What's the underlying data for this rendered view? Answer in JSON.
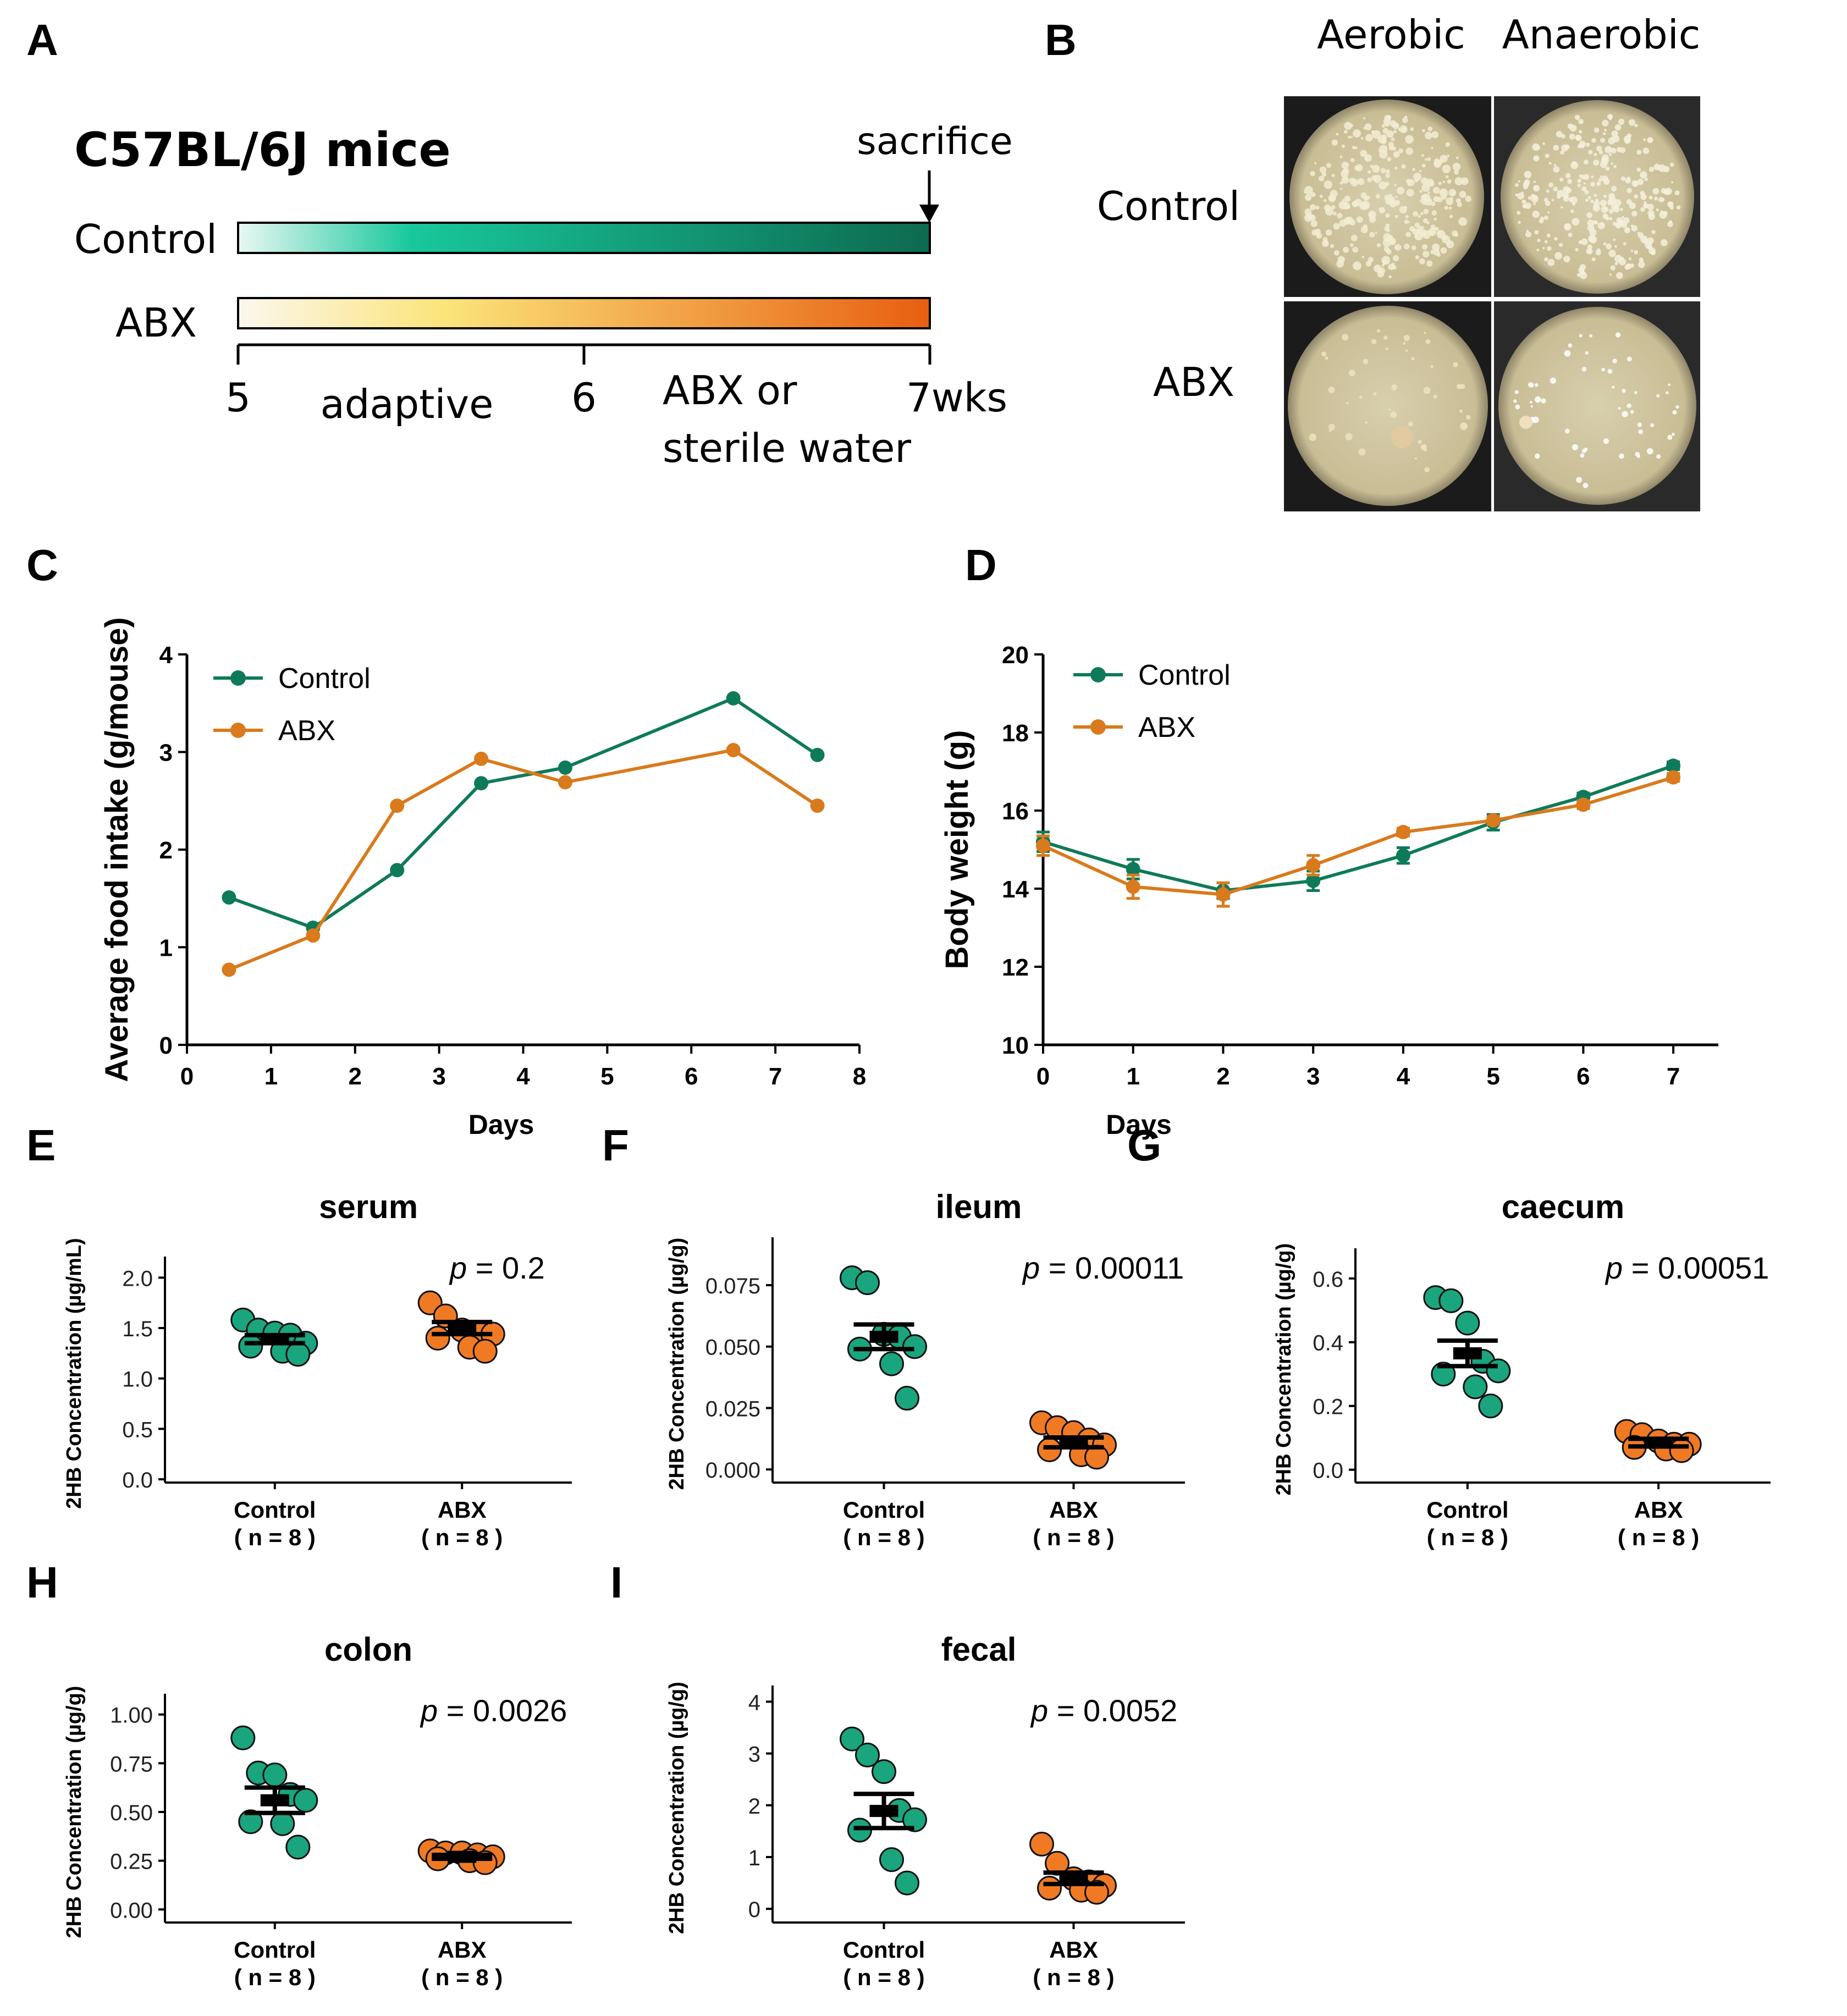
{
  "colors": {
    "control": "#0f7a5a",
    "abx": "#d97a1c",
    "control_dot": "#1aa57e",
    "abx_dot": "#f07a24",
    "control_bar_start": "#e9f8f3",
    "control_bar_mid": "#18c89c",
    "control_bar_end": "#0d6a4f",
    "abx_bar_start": "#fbf7ee",
    "abx_bar_mid": "#fbe47a",
    "abx_bar_end": "#e85e10"
  },
  "panel_labels": [
    "A",
    "B",
    "C",
    "D",
    "E",
    "F",
    "G",
    "H",
    "I"
  ],
  "panel_a": {
    "title": "C57BL/6J mice",
    "control_label": "Control",
    "abx_label": "ABX",
    "sacrifice_label": "sacrifice",
    "ticks": [
      "5",
      "6",
      "7wks"
    ],
    "phase1_label": "adaptive",
    "phase2_label_line1": "ABX or",
    "phase2_label_line2": "sterile water"
  },
  "panel_b": {
    "col_labels": [
      "Aerobic",
      "Anaerobic"
    ],
    "row_labels": [
      "Control",
      "ABX"
    ],
    "plates": [
      {
        "group": "Control",
        "condition": "Aerobic",
        "colony_density": "high"
      },
      {
        "group": "Control",
        "condition": "Anaerobic",
        "colony_density": "high"
      },
      {
        "group": "ABX",
        "condition": "Aerobic",
        "colony_density": "low"
      },
      {
        "group": "ABX",
        "condition": "Anaerobic",
        "colony_density": "low"
      }
    ]
  },
  "chart_data": [
    {
      "panel": "C",
      "type": "line",
      "xlabel": "Days",
      "ylabel": "Average food intake (g/mouse)",
      "xlim": [
        0,
        8
      ],
      "ylim": [
        0,
        4
      ],
      "xticks": [
        "0",
        "1",
        "2",
        "3",
        "4",
        "5",
        "6",
        "7",
        "8"
      ],
      "yticks": [
        "0",
        "1",
        "2",
        "3",
        "4"
      ],
      "legend": [
        "Control",
        "ABX"
      ],
      "series": [
        {
          "name": "Control",
          "x": [
            0.5,
            1.5,
            2.5,
            3.5,
            4.5,
            6.5,
            7.5
          ],
          "y": [
            1.51,
            1.2,
            1.79,
            2.68,
            2.84,
            3.55,
            2.97
          ]
        },
        {
          "name": "ABX",
          "x": [
            0.5,
            1.5,
            2.5,
            3.5,
            4.5,
            6.5,
            7.5
          ],
          "y": [
            0.77,
            1.12,
            2.45,
            2.93,
            2.69,
            3.02,
            2.45
          ]
        }
      ]
    },
    {
      "panel": "D",
      "type": "line",
      "xlabel": "Days",
      "ylabel": "Body weight (g)",
      "xlim": [
        0,
        7.5
      ],
      "ylim": [
        10,
        20
      ],
      "xticks": [
        "0",
        "1",
        "2",
        "3",
        "4",
        "5",
        "6",
        "7"
      ],
      "yticks": [
        "10",
        "12",
        "14",
        "16",
        "18",
        "20"
      ],
      "legend": [
        "Control",
        "ABX"
      ],
      "series": [
        {
          "name": "Control",
          "x": [
            0,
            1,
            2,
            3,
            4,
            5,
            6,
            7
          ],
          "y": [
            15.2,
            14.5,
            13.95,
            14.2,
            14.85,
            15.7,
            16.35,
            17.15
          ],
          "err": [
            0.25,
            0.25,
            0.2,
            0.25,
            0.2,
            0.2,
            0.1,
            0.1
          ]
        },
        {
          "name": "ABX",
          "x": [
            0,
            1,
            2,
            3,
            4,
            5,
            6,
            7
          ],
          "y": [
            15.1,
            14.05,
            13.85,
            14.6,
            15.45,
            15.75,
            16.15,
            16.85
          ],
          "err": [
            0.25,
            0.3,
            0.3,
            0.25,
            0.1,
            0.1,
            0.1,
            0.1
          ]
        }
      ]
    },
    {
      "panel": "E",
      "type": "scatter",
      "title": "serum",
      "ylabel": "2HB Concentration (µg/mL)",
      "ylim": [
        0,
        2.1
      ],
      "yticks": [
        "0.0",
        "0.5",
        "1.0",
        "1.5",
        "2.0"
      ],
      "groups": [
        "Control",
        "ABX"
      ],
      "group_n": [
        "( n =  8 )",
        "( n =  8 )"
      ],
      "p_label": "p",
      "p_value": " = 0.2",
      "series": [
        {
          "name": "Control",
          "values": [
            1.58,
            1.48,
            1.45,
            1.43,
            1.35,
            1.32,
            1.27,
            1.24
          ],
          "mean": 1.39,
          "sem": 0.04
        },
        {
          "name": "ABX",
          "values": [
            1.75,
            1.62,
            1.48,
            1.46,
            1.44,
            1.4,
            1.31,
            1.27
          ],
          "mean": 1.5,
          "sem": 0.06
        }
      ]
    },
    {
      "panel": "F",
      "type": "scatter",
      "title": "ileum",
      "ylabel": "2HB Concentration (µg/g)",
      "ylim": [
        -0.004,
        0.09
      ],
      "yticks": [
        "0.000",
        "0.025",
        "0.050",
        "0.075"
      ],
      "groups": [
        "Control",
        "ABX"
      ],
      "group_n": [
        "( n =  8 )",
        "( n =  8 )"
      ],
      "p_label": "p",
      "p_value": " = 0.00011",
      "series": [
        {
          "name": "Control",
          "values": [
            0.078,
            0.076,
            0.055,
            0.054,
            0.05,
            0.049,
            0.043,
            0.029
          ],
          "mean": 0.054,
          "sem": 0.005
        },
        {
          "name": "ABX",
          "values": [
            0.019,
            0.017,
            0.015,
            0.012,
            0.01,
            0.008,
            0.006,
            0.005
          ],
          "mean": 0.011,
          "sem": 0.002
        }
      ]
    },
    {
      "panel": "G",
      "type": "scatter",
      "title": "caecum",
      "ylabel": "2HB Concentration (µg/g)",
      "ylim": [
        -0.03,
        0.66
      ],
      "yticks": [
        "0.0",
        "0.2",
        "0.4",
        "0.6"
      ],
      "groups": [
        "Control",
        "ABX"
      ],
      "group_n": [
        "( n =  8 )",
        "( n =  8 )"
      ],
      "p_label": "p",
      "p_value": " = 0.00051",
      "series": [
        {
          "name": "Control",
          "values": [
            0.54,
            0.53,
            0.46,
            0.34,
            0.31,
            0.3,
            0.26,
            0.2
          ],
          "mean": 0.365,
          "sem": 0.04
        },
        {
          "name": "ABX",
          "values": [
            0.12,
            0.11,
            0.09,
            0.08,
            0.08,
            0.07,
            0.065,
            0.06
          ],
          "mean": 0.085,
          "sem": 0.012
        }
      ]
    },
    {
      "panel": "H",
      "type": "scatter",
      "title": "colon",
      "ylabel": "2HB Concentration (µg/g)",
      "ylim": [
        -0.05,
        1.05
      ],
      "yticks": [
        "0.00",
        "0.25",
        "0.50",
        "0.75",
        "1.00"
      ],
      "groups": [
        "Control",
        "ABX"
      ],
      "group_n": [
        "( n =  8 )",
        "( n =  8 )"
      ],
      "p_label": "p",
      "p_value": " = 0.0026",
      "series": [
        {
          "name": "Control",
          "values": [
            0.88,
            0.7,
            0.69,
            0.59,
            0.56,
            0.45,
            0.44,
            0.32
          ],
          "mean": 0.56,
          "sem": 0.065
        },
        {
          "name": "ABX",
          "values": [
            0.3,
            0.29,
            0.29,
            0.28,
            0.27,
            0.26,
            0.25,
            0.24
          ],
          "mean": 0.27,
          "sem": 0.01
        }
      ]
    },
    {
      "panel": "I",
      "type": "scatter",
      "title": "fecal",
      "ylabel": "2HB Concentration (µg/g)",
      "ylim": [
        -0.2,
        4.1
      ],
      "yticks": [
        "0",
        "1",
        "2",
        "3",
        "4"
      ],
      "groups": [
        "Control",
        "ABX"
      ],
      "group_n": [
        "( n =  8 )",
        "( n =  8 )"
      ],
      "p_label": "p",
      "p_value": " = 0.0052",
      "series": [
        {
          "name": "Control",
          "values": [
            3.28,
            2.97,
            2.65,
            1.9,
            1.72,
            1.52,
            0.95,
            0.5
          ],
          "mean": 1.89,
          "sem": 0.33
        },
        {
          "name": "ABX",
          "values": [
            1.25,
            0.88,
            0.58,
            0.52,
            0.45,
            0.4,
            0.36,
            0.32
          ],
          "mean": 0.59,
          "sem": 0.11
        }
      ]
    }
  ]
}
